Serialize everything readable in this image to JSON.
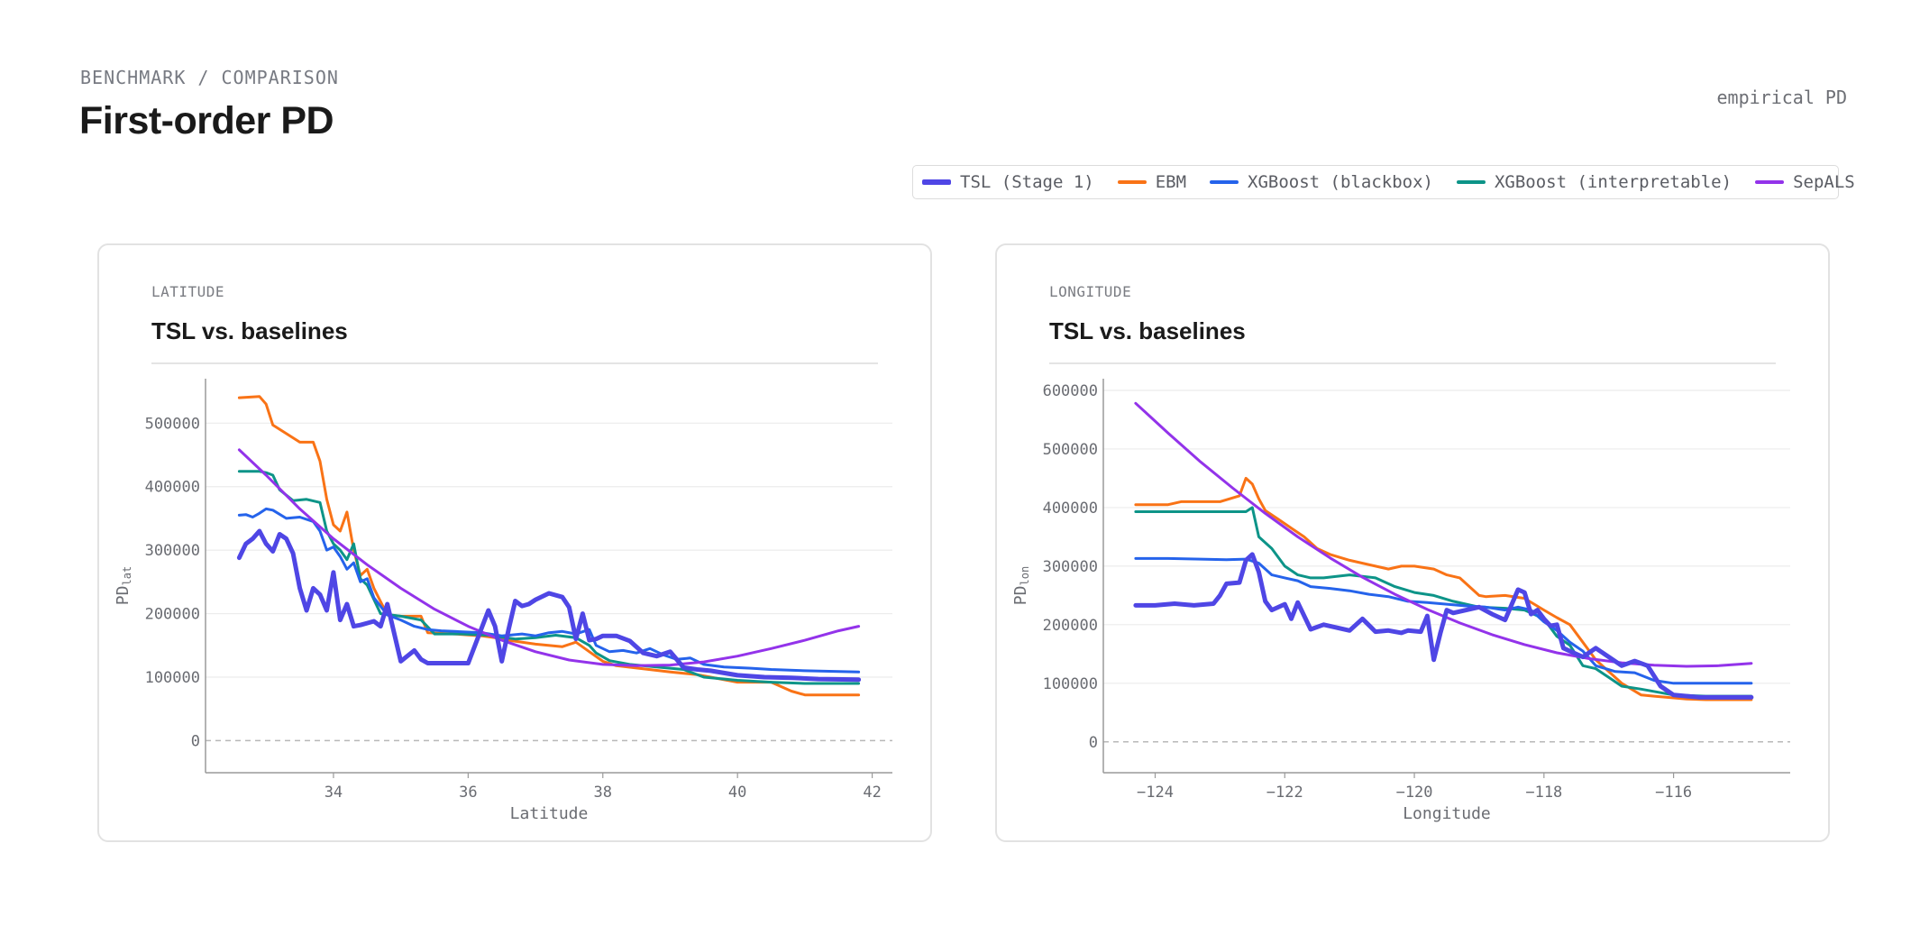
{
  "header": {
    "breadcrumb": "BENCHMARK / COMPARISON",
    "title": "First-order PD",
    "meta": "empirical PD"
  },
  "legend": [
    {
      "label": "TSL (Stage 1)",
      "color": "#4f46e5",
      "icon": "line-swatch-thick"
    },
    {
      "label": "EBM",
      "color": "#f97316",
      "icon": "line-swatch"
    },
    {
      "label": "XGBoost (blackbox)",
      "color": "#2563eb",
      "icon": "line-swatch"
    },
    {
      "label": "XGBoost (interpretable)",
      "color": "#0d9488",
      "icon": "line-swatch"
    },
    {
      "label": "SepALS",
      "color": "#9333ea",
      "icon": "line-swatch"
    }
  ],
  "panels": [
    {
      "kicker": "LATITUDE",
      "title": "TSL vs. baselines"
    },
    {
      "kicker": "LONGITUDE",
      "title": "TSL vs. baselines"
    }
  ],
  "chart_data": [
    {
      "type": "line",
      "title": "TSL vs. baselines",
      "xlabel": "Latitude",
      "ylabel": "PD",
      "ylabel_sub": "lat",
      "xlim": [
        32.1,
        42.3
      ],
      "ylim": [
        -25000,
        570000
      ],
      "xticks": [
        34,
        36,
        38,
        40,
        42
      ],
      "yticks": [
        0,
        100000,
        200000,
        300000,
        400000,
        500000
      ],
      "grid": true,
      "reference_line": 0,
      "series": [
        {
          "name": "EBM",
          "color": "#f97316",
          "x": [
            32.6,
            32.9,
            33.0,
            33.1,
            33.5,
            33.7,
            33.8,
            33.9,
            34.0,
            34.1,
            34.2,
            34.3,
            34.4,
            34.5,
            34.6,
            34.8,
            35.0,
            35.3,
            35.4,
            35.8,
            36.2,
            36.4,
            36.6,
            37.0,
            37.4,
            37.6,
            37.8,
            38.0,
            38.2,
            38.6,
            39.0,
            39.4,
            39.6,
            40.0,
            40.5,
            40.8,
            41.0,
            41.8
          ],
          "y": [
            540000,
            542000,
            530000,
            497000,
            470000,
            470000,
            440000,
            380000,
            340000,
            330000,
            360000,
            300000,
            260000,
            270000,
            240000,
            198000,
            196000,
            196000,
            170000,
            168000,
            165000,
            162000,
            158000,
            152000,
            148000,
            155000,
            140000,
            125000,
            118000,
            113000,
            108000,
            104000,
            100000,
            92000,
            92000,
            78000,
            72000,
            72000
          ]
        },
        {
          "name": "XGBoost (interpretable)",
          "color": "#0d9488",
          "x": [
            32.6,
            32.9,
            33.0,
            33.1,
            33.2,
            33.4,
            33.6,
            33.8,
            33.9,
            34.0,
            34.1,
            34.2,
            34.3,
            34.4,
            34.5,
            34.7,
            35.0,
            35.3,
            35.5,
            35.9,
            36.3,
            36.5,
            36.7,
            37.0,
            37.3,
            37.6,
            37.8,
            37.9,
            38.1,
            38.4,
            38.8,
            39.2,
            39.5,
            40.0,
            40.5,
            41.0,
            41.8
          ],
          "y": [
            424000,
            424000,
            422000,
            418000,
            395000,
            378000,
            380000,
            375000,
            330000,
            310000,
            300000,
            285000,
            310000,
            255000,
            245000,
            200000,
            196000,
            190000,
            168000,
            168000,
            166000,
            163000,
            160000,
            162000,
            166000,
            162000,
            150000,
            138000,
            126000,
            120000,
            116000,
            112000,
            100000,
            95000,
            92000,
            90000,
            90000
          ]
        },
        {
          "name": "XGBoost (blackbox)",
          "color": "#2563eb",
          "x": [
            32.6,
            32.7,
            32.8,
            32.9,
            33.0,
            33.1,
            33.3,
            33.5,
            33.7,
            33.8,
            33.9,
            34.0,
            34.1,
            34.2,
            34.3,
            34.4,
            34.5,
            34.6,
            34.8,
            35.0,
            35.2,
            35.4,
            35.6,
            35.8,
            36.2,
            36.5,
            36.8,
            37.0,
            37.2,
            37.4,
            37.6,
            37.8,
            37.9,
            38.1,
            38.3,
            38.5,
            38.7,
            38.9,
            39.1,
            39.3,
            39.5,
            39.8,
            40.2,
            40.5,
            41.0,
            41.8
          ],
          "y": [
            355000,
            356000,
            352000,
            358000,
            365000,
            363000,
            350000,
            352000,
            345000,
            330000,
            300000,
            305000,
            290000,
            270000,
            280000,
            250000,
            255000,
            225000,
            198000,
            190000,
            180000,
            175000,
            173000,
            172000,
            170000,
            165000,
            168000,
            165000,
            170000,
            172000,
            168000,
            175000,
            150000,
            140000,
            142000,
            138000,
            145000,
            135000,
            128000,
            130000,
            120000,
            116000,
            114000,
            112000,
            110000,
            108000
          ]
        },
        {
          "name": "SepALS",
          "color": "#9333ea",
          "x": [
            32.6,
            33.0,
            33.5,
            34.0,
            34.5,
            35.0,
            35.5,
            36.0,
            36.5,
            37.0,
            37.5,
            38.0,
            38.5,
            39.0,
            39.5,
            40.0,
            40.5,
            41.0,
            41.5,
            41.8
          ],
          "y": [
            458000,
            418000,
            365000,
            318000,
            277000,
            240000,
            207000,
            180000,
            158000,
            140000,
            127000,
            120000,
            118000,
            119000,
            124000,
            133000,
            145000,
            158000,
            173000,
            180000
          ]
        },
        {
          "name": "TSL (Stage 1)",
          "color": "#4f46e5",
          "thick": true,
          "x": [
            32.6,
            32.7,
            32.8,
            32.9,
            33.0,
            33.1,
            33.2,
            33.3,
            33.4,
            33.5,
            33.6,
            33.7,
            33.8,
            33.9,
            34.0,
            34.1,
            34.2,
            34.3,
            34.4,
            34.5,
            34.6,
            34.7,
            34.8,
            35.0,
            35.2,
            35.3,
            35.4,
            35.5,
            35.7,
            36.0,
            36.3,
            36.4,
            36.5,
            36.6,
            36.7,
            36.8,
            36.9,
            37.0,
            37.2,
            37.4,
            37.5,
            37.6,
            37.7,
            37.8,
            37.9,
            38.0,
            38.2,
            38.4,
            38.6,
            38.8,
            39.0,
            39.2,
            39.4,
            39.6,
            40.0,
            40.4,
            40.8,
            41.2,
            41.8
          ],
          "y": [
            288000,
            310000,
            318000,
            330000,
            310000,
            298000,
            325000,
            318000,
            295000,
            240000,
            205000,
            240000,
            230000,
            205000,
            265000,
            190000,
            215000,
            180000,
            182000,
            185000,
            188000,
            180000,
            215000,
            125000,
            142000,
            128000,
            122000,
            122000,
            122000,
            122000,
            205000,
            180000,
            125000,
            175000,
            220000,
            212000,
            215000,
            222000,
            232000,
            226000,
            210000,
            160000,
            200000,
            158000,
            160000,
            165000,
            165000,
            157000,
            138000,
            133000,
            140000,
            115000,
            112000,
            110000,
            103000,
            100000,
            99000,
            97000,
            96000
          ]
        }
      ]
    },
    {
      "type": "line",
      "title": "TSL vs. baselines",
      "xlabel": "Longitude",
      "ylabel": "PD",
      "ylabel_sub": "lon",
      "xlim": [
        -124.8,
        -114.2
      ],
      "ylim": [
        -25000,
        620000
      ],
      "xticks": [
        -124,
        -122,
        -120,
        -118,
        -116
      ],
      "yticks": [
        0,
        100000,
        200000,
        300000,
        400000,
        500000,
        600000
      ],
      "grid": true,
      "reference_line": 0,
      "series": [
        {
          "name": "EBM",
          "color": "#f97316",
          "x": [
            -124.3,
            -123.8,
            -123.6,
            -123.0,
            -122.7,
            -122.6,
            -122.5,
            -122.4,
            -122.3,
            -122.1,
            -121.9,
            -121.7,
            -121.5,
            -121.3,
            -121.0,
            -120.6,
            -120.4,
            -120.2,
            -120.0,
            -119.7,
            -119.5,
            -119.3,
            -119.0,
            -118.9,
            -118.6,
            -118.3,
            -118.0,
            -117.8,
            -117.6,
            -117.4,
            -117.2,
            -117.0,
            -116.8,
            -116.5,
            -116.3,
            -116.0,
            -115.8,
            -115.5,
            -114.8
          ],
          "y": [
            405000,
            405000,
            410000,
            410000,
            420000,
            450000,
            440000,
            415000,
            395000,
            380000,
            365000,
            350000,
            330000,
            320000,
            310000,
            300000,
            295000,
            300000,
            300000,
            295000,
            285000,
            280000,
            250000,
            248000,
            250000,
            245000,
            225000,
            212000,
            200000,
            170000,
            140000,
            120000,
            100000,
            80000,
            78000,
            75000,
            73000,
            72000,
            72000
          ]
        },
        {
          "name": "XGBoost (interpretable)",
          "color": "#0d9488",
          "x": [
            -124.3,
            -123.5,
            -123.0,
            -122.6,
            -122.5,
            -122.4,
            -122.2,
            -122.0,
            -121.8,
            -121.6,
            -121.4,
            -121.0,
            -120.6,
            -120.3,
            -120.0,
            -119.7,
            -119.4,
            -119.0,
            -118.6,
            -118.3,
            -118.0,
            -117.8,
            -117.6,
            -117.4,
            -117.2,
            -117.0,
            -116.8,
            -116.5,
            -116.0,
            -115.5,
            -114.8
          ],
          "y": [
            393000,
            393000,
            393000,
            393000,
            400000,
            350000,
            330000,
            300000,
            285000,
            280000,
            280000,
            285000,
            280000,
            265000,
            255000,
            250000,
            240000,
            230000,
            228000,
            225000,
            210000,
            180000,
            165000,
            130000,
            125000,
            110000,
            95000,
            90000,
            80000,
            78000,
            78000
          ]
        },
        {
          "name": "XGBoost (blackbox)",
          "color": "#2563eb",
          "x": [
            -124.3,
            -123.8,
            -123.3,
            -122.9,
            -122.6,
            -122.4,
            -122.2,
            -122.0,
            -121.8,
            -121.6,
            -121.3,
            -121.0,
            -120.7,
            -120.4,
            -120.1,
            -119.8,
            -119.5,
            -119.2,
            -118.9,
            -118.6,
            -118.4,
            -118.2,
            -118.0,
            -117.8,
            -117.6,
            -117.4,
            -117.2,
            -116.9,
            -116.6,
            -116.3,
            -116.0,
            -115.5,
            -114.8
          ],
          "y": [
            313000,
            313000,
            312000,
            311000,
            312000,
            305000,
            285000,
            280000,
            275000,
            265000,
            262000,
            258000,
            252000,
            248000,
            240000,
            238000,
            235000,
            232000,
            230000,
            225000,
            230000,
            225000,
            205000,
            190000,
            170000,
            155000,
            130000,
            120000,
            118000,
            105000,
            100000,
            100000,
            100000
          ]
        },
        {
          "name": "SepALS",
          "color": "#9333ea",
          "x": [
            -124.3,
            -123.8,
            -123.3,
            -122.8,
            -122.3,
            -121.8,
            -121.3,
            -120.8,
            -120.3,
            -119.8,
            -119.3,
            -118.8,
            -118.3,
            -117.8,
            -117.3,
            -116.8,
            -116.3,
            -115.8,
            -115.3,
            -114.8
          ],
          "y": [
            578000,
            527000,
            478000,
            433000,
            390000,
            350000,
            314000,
            281000,
            252000,
            226000,
            203000,
            183000,
            166000,
            152000,
            142000,
            135000,
            131000,
            129000,
            130000,
            134000
          ]
        },
        {
          "name": "TSL (Stage 1)",
          "color": "#4f46e5",
          "thick": true,
          "x": [
            -124.3,
            -124.0,
            -123.7,
            -123.4,
            -123.1,
            -123.0,
            -122.9,
            -122.7,
            -122.6,
            -122.5,
            -122.4,
            -122.3,
            -122.2,
            -122.0,
            -121.9,
            -121.8,
            -121.6,
            -121.4,
            -121.2,
            -121.0,
            -120.8,
            -120.6,
            -120.4,
            -120.2,
            -120.1,
            -119.9,
            -119.8,
            -119.7,
            -119.6,
            -119.5,
            -119.4,
            -119.2,
            -119.0,
            -118.8,
            -118.6,
            -118.4,
            -118.3,
            -118.2,
            -118.1,
            -118.0,
            -117.9,
            -117.8,
            -117.7,
            -117.6,
            -117.4,
            -117.2,
            -117.0,
            -116.8,
            -116.6,
            -116.4,
            -116.2,
            -116.0,
            -115.6,
            -115.0,
            -114.8
          ],
          "y": [
            233000,
            233000,
            236000,
            233000,
            236000,
            250000,
            270000,
            272000,
            310000,
            320000,
            290000,
            240000,
            225000,
            235000,
            210000,
            238000,
            192000,
            200000,
            195000,
            190000,
            210000,
            188000,
            190000,
            186000,
            190000,
            188000,
            215000,
            140000,
            185000,
            225000,
            220000,
            225000,
            230000,
            218000,
            208000,
            260000,
            255000,
            218000,
            225000,
            210000,
            198000,
            200000,
            160000,
            155000,
            145000,
            160000,
            145000,
            130000,
            138000,
            130000,
            95000,
            80000,
            76000,
            76000,
            76000
          ]
        }
      ]
    }
  ]
}
